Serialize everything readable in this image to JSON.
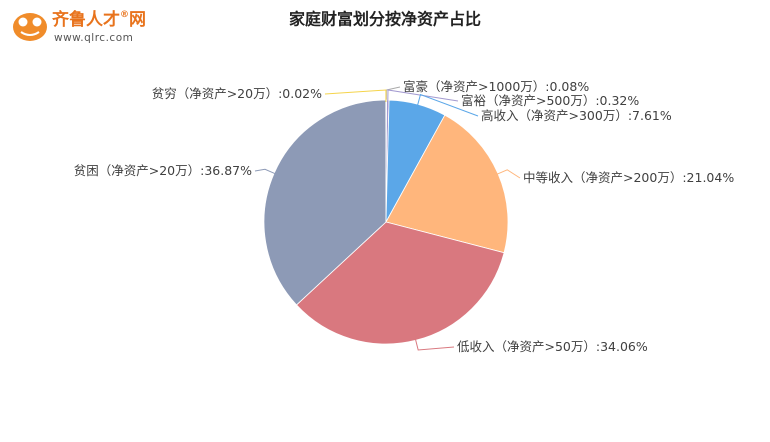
{
  "logo": {
    "brand": "齐鲁人才",
    "registered": "®",
    "brand_suffix": "网",
    "url": "www.qlrc.com"
  },
  "chart_data": {
    "type": "pie",
    "title": "家庭财富划分按净资产占比",
    "categories": [
      "富豪（净资产>1000万）",
      "富裕（净资产>500万）",
      "高收入（净资产>300万）",
      "中等收入（净资产>200万）",
      "低收入（净资产>50万）",
      "贫困（净资产>20万）",
      "贫穷（净资产>20万）"
    ],
    "values": [
      0.08,
      0.32,
      7.61,
      21.04,
      34.06,
      36.87,
      0.02
    ],
    "value_labels": [
      ":0.08%",
      ":0.32%",
      ":7.61%",
      ":21.04%",
      ":34.06%",
      ":36.87%",
      ":0.02%"
    ],
    "colors": [
      "#a9a9a9",
      "#a39ad0",
      "#5ba7e8",
      "#ffb67c",
      "#d9787f",
      "#8d9ab6",
      "#f5d44b"
    ]
  }
}
